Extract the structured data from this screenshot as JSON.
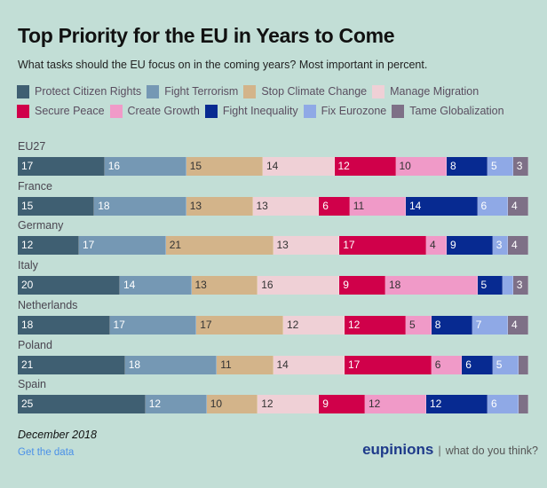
{
  "title": "Top Priority for the EU in Years to Come",
  "subtitle": "What tasks should the EU focus on in the coming years? Most important in percent.",
  "footer": {
    "date": "December 2018",
    "link": "Get the data",
    "brand": "eupinions",
    "separator": "|",
    "tagline": "what do you think?"
  },
  "chart_data": {
    "type": "bar",
    "orientation": "horizontal-stacked-100",
    "title": "Top Priority for the EU in Years to Come",
    "subtitle": "What tasks should the EU focus on in the coming years? Most important in percent.",
    "xlabel": "",
    "ylabel": "",
    "xlim": [
      0,
      100
    ],
    "grid": false,
    "legend_position": "top",
    "categories": [
      "EU27",
      "France",
      "Germany",
      "Italy",
      "Netherlands",
      "Poland",
      "Spain"
    ],
    "series": [
      {
        "name": "Protect Citizen Rights",
        "color": "#3f5f72",
        "label_color": "#ffffff",
        "values": [
          17,
          15,
          12,
          20,
          18,
          21,
          25
        ]
      },
      {
        "name": "Fight Terrorism",
        "color": "#7598b4",
        "label_color": "#ffffff",
        "values": [
          16,
          18,
          17,
          14,
          17,
          18,
          12
        ]
      },
      {
        "name": "Stop Climate Change",
        "color": "#d3b48a",
        "label_color": "#333333",
        "values": [
          15,
          13,
          21,
          13,
          17,
          11,
          10
        ]
      },
      {
        "name": "Manage Migration",
        "color": "#efd0d6",
        "label_color": "#333333",
        "values": [
          14,
          13,
          13,
          16,
          12,
          14,
          12
        ]
      },
      {
        "name": "Secure Peace",
        "color": "#d0004a",
        "label_color": "#ffffff",
        "values": [
          12,
          6,
          17,
          9,
          12,
          17,
          9
        ]
      },
      {
        "name": "Create Growth",
        "color": "#f09ac8",
        "label_color": "#333333",
        "values": [
          10,
          11,
          4,
          18,
          5,
          6,
          12
        ]
      },
      {
        "name": "Fight Inequality",
        "color": "#072a91",
        "label_color": "#ffffff",
        "values": [
          8,
          14,
          9,
          5,
          8,
          6,
          12
        ]
      },
      {
        "name": "Fix Eurozone",
        "color": "#8fa9e6",
        "label_color": "#ffffff",
        "values": [
          5,
          6,
          3,
          2,
          7,
          5,
          6
        ]
      },
      {
        "name": "Tame Globalization",
        "color": "#7e7087",
        "label_color": "#ffffff",
        "values": [
          3,
          4,
          4,
          3,
          4,
          2,
          2
        ]
      }
    ],
    "hidden_labels_below": 3
  }
}
